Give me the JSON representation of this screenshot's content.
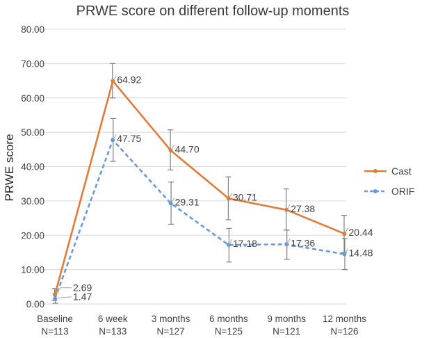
{
  "chart_data": {
    "type": "line",
    "title": "PRWE score on different follow-up moments",
    "xlabel": "",
    "ylabel": "PRWE score",
    "ylim": [
      0,
      80
    ],
    "y_ticks": [
      "0.00",
      "10.00",
      "20.00",
      "30.00",
      "40.00",
      "50.00",
      "60.00",
      "70.00",
      "80.00"
    ],
    "grid": true,
    "legend_position": "right",
    "categories": [
      {
        "name": "Baseline",
        "n": "N=113"
      },
      {
        "name": "6 week",
        "n": "N=133"
      },
      {
        "name": "3 months",
        "n": "N=127"
      },
      {
        "name": "6 months",
        "n": "N=125"
      },
      {
        "name": "9 months",
        "n": "N=121"
      },
      {
        "name": "12 months",
        "n": "N=126"
      }
    ],
    "series": [
      {
        "name": "Cast",
        "color": "#E07B39",
        "style": "solid",
        "values": [
          2.69,
          64.92,
          44.7,
          30.71,
          27.38,
          20.44
        ],
        "labels": [
          "2.69",
          "64.92",
          "44.70",
          "30.71",
          "27.38",
          "20.44"
        ],
        "error_low": [
          1.0,
          60.0,
          39.0,
          24.5,
          21.5,
          15.0
        ],
        "error_high": [
          4.5,
          70.0,
          50.7,
          37.0,
          33.5,
          25.8
        ]
      },
      {
        "name": "ORIF",
        "color": "#6A9AD8",
        "style": "dashed",
        "values": [
          1.47,
          47.75,
          29.31,
          17.18,
          17.36,
          14.48
        ],
        "labels": [
          "1.47",
          "47.75",
          "29.31",
          "17.18",
          "17.36",
          "14.48"
        ],
        "error_low": [
          0.2,
          41.5,
          23.2,
          12.2,
          13.0,
          10.0
        ],
        "error_high": [
          3.0,
          54.0,
          35.5,
          22.0,
          21.5,
          19.0
        ]
      }
    ]
  }
}
